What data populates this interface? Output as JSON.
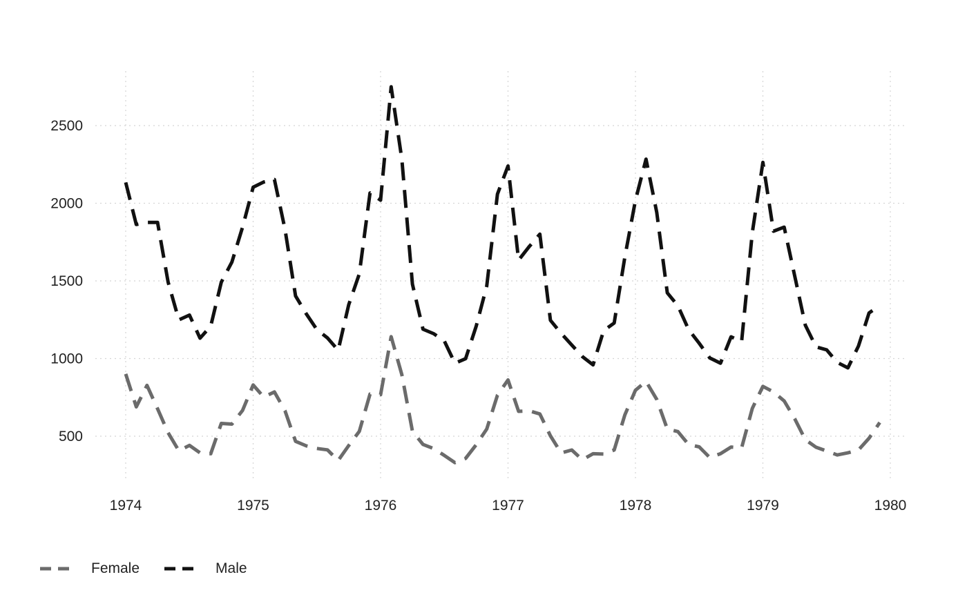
{
  "chart_data": {
    "type": "line",
    "title": "",
    "xlabel": "",
    "ylabel": "",
    "x_ticks": [
      1974,
      1975,
      1976,
      1977,
      1978,
      1979,
      1980
    ],
    "y_ticks": [
      500,
      1000,
      1500,
      2000,
      2500
    ],
    "xlim": [
      1974,
      1980
    ],
    "ylim": [
      200,
      2800
    ],
    "grid": true,
    "legend_position": "bottom-left",
    "x": [
      1974.0,
      1974.083,
      1974.167,
      1974.25,
      1974.333,
      1974.417,
      1974.5,
      1974.583,
      1974.667,
      1974.75,
      1974.833,
      1974.917,
      1975.0,
      1975.083,
      1975.167,
      1975.25,
      1975.333,
      1975.417,
      1975.5,
      1975.583,
      1975.667,
      1975.75,
      1975.833,
      1975.917,
      1976.0,
      1976.083,
      1976.167,
      1976.25,
      1976.333,
      1976.417,
      1976.5,
      1976.583,
      1976.667,
      1976.75,
      1976.833,
      1976.917,
      1977.0,
      1977.083,
      1977.167,
      1977.25,
      1977.333,
      1977.417,
      1977.5,
      1977.583,
      1977.667,
      1977.75,
      1977.833,
      1977.917,
      1978.0,
      1978.083,
      1978.167,
      1978.25,
      1978.333,
      1978.417,
      1978.5,
      1978.583,
      1978.667,
      1978.75,
      1978.833,
      1978.917,
      1979.0,
      1979.083,
      1979.167,
      1979.25,
      1979.333,
      1979.417,
      1979.5,
      1979.583,
      1979.667,
      1979.75,
      1979.833,
      1979.917
    ],
    "series": [
      {
        "name": "Female",
        "color": "#6b6b6b",
        "values": [
          901,
          689,
          827,
          677,
          522,
          406,
          441,
          393,
          387,
          582,
          578,
          666,
          830,
          752,
          785,
          664,
          467,
          438,
          421,
          412,
          343,
          440,
          531,
          771,
          767,
          1141,
          896,
          532,
          447,
          420,
          376,
          330,
          357,
          445,
          546,
          764,
          862,
          660,
          663,
          643,
          502,
          392,
          411,
          348,
          387,
          385,
          411,
          638,
          796,
          853,
          737,
          546,
          530,
          446,
          431,
          362,
          387,
          430,
          425,
          679,
          821,
          785,
          727,
          612,
          478,
          429,
          405,
          379,
          393,
          411,
          487,
          588
        ]
      },
      {
        "name": "Male",
        "color": "#111111",
        "values": [
          2134,
          1863,
          1877,
          1877,
          1492,
          1249,
          1280,
          1131,
          1209,
          1492,
          1621,
          1846,
          2103,
          2137,
          2153,
          1833,
          1403,
          1288,
          1186,
          1133,
          1053,
          1347,
          1545,
          2066,
          2020,
          2750,
          2283,
          1479,
          1189,
          1160,
          1113,
          970,
          999,
          1208,
          1467,
          2059,
          2240,
          1634,
          1722,
          1801,
          1246,
          1162,
          1087,
          1013,
          959,
          1179,
          1229,
          1655,
          2019,
          2284,
          1942,
          1423,
          1340,
          1187,
          1098,
          1004,
          970,
          1140,
          1110,
          1812,
          2263,
          1820,
          1846,
          1531,
          1215,
          1075,
          1056,
          975,
          940,
          1081,
          1294,
          1341
        ]
      }
    ]
  },
  "legend": {
    "female_label": "Female",
    "male_label": "Male"
  }
}
